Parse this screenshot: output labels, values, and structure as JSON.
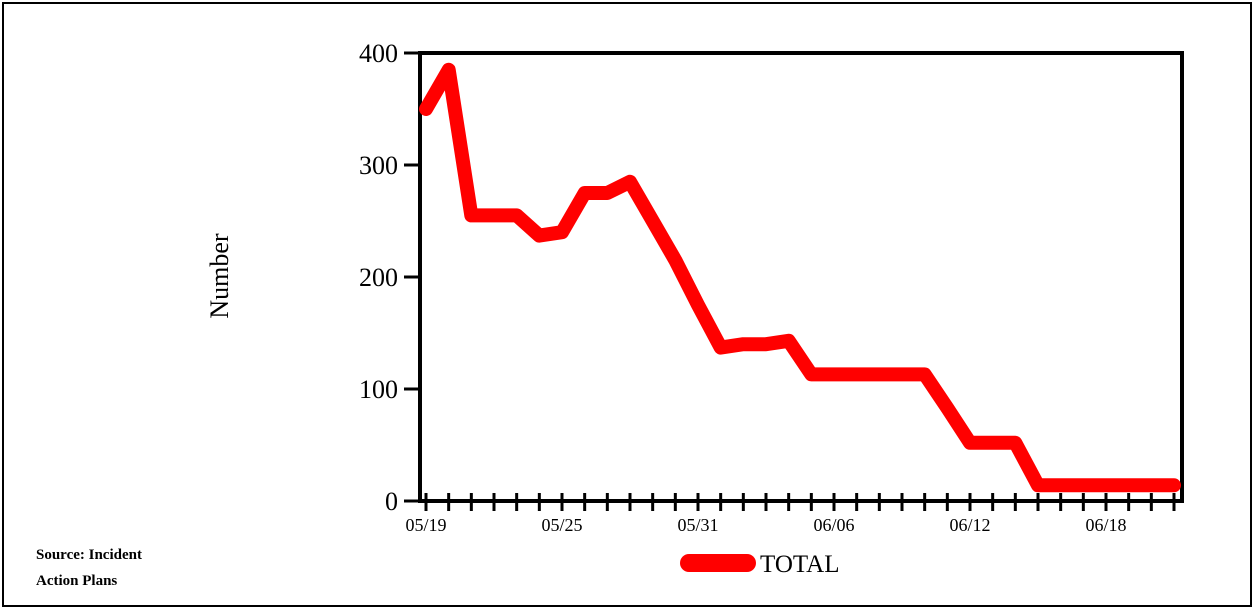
{
  "chart_data": {
    "type": "line",
    "ylabel": "Number",
    "xlabel": "",
    "title": "",
    "ylim": [
      0,
      400
    ],
    "yticks": [
      0,
      100,
      200,
      300,
      400
    ],
    "x_tick_labels": [
      "05/19",
      "05/25",
      "05/31",
      "06/06",
      "06/12",
      "06/18"
    ],
    "x": [
      "05/19",
      "05/20",
      "05/21",
      "05/22",
      "05/23",
      "05/24",
      "05/25",
      "05/26",
      "05/27",
      "05/28",
      "05/29",
      "05/30",
      "05/31",
      "06/01",
      "06/02",
      "06/03",
      "06/04",
      "06/05",
      "06/06",
      "06/07",
      "06/08",
      "06/09",
      "06/10",
      "06/11",
      "06/12",
      "06/13",
      "06/14",
      "06/15",
      "06/16",
      "06/17",
      "06/18",
      "06/19",
      "06/20",
      "06/21"
    ],
    "series": [
      {
        "name": "TOTAL",
        "color": "#ff0000",
        "values": [
          350,
          385,
          255,
          255,
          255,
          237,
          240,
          275,
          275,
          285,
          250,
          215,
          175,
          137,
          140,
          140,
          143,
          113,
          113,
          113,
          113,
          113,
          113,
          83,
          52,
          52,
          52,
          14,
          14,
          14,
          14,
          14,
          14,
          14
        ]
      }
    ],
    "legend": "bottom-center",
    "grid": false
  },
  "source": {
    "line1": "Source: Incident",
    "line2": "Action Plans"
  }
}
